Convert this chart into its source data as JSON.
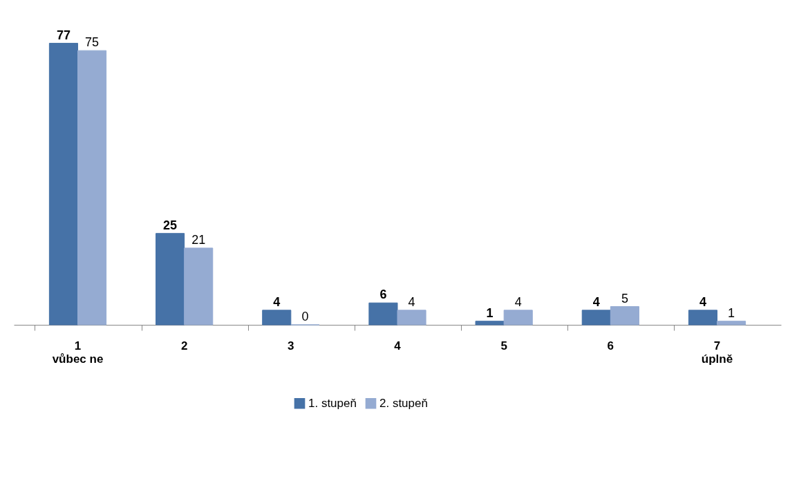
{
  "chart_data": {
    "type": "bar",
    "categories": [
      "1\nvůbec ne",
      "2",
      "3",
      "4",
      "5",
      "6",
      "7\núplně"
    ],
    "series": [
      {
        "name": "1. stupeň",
        "color": "#4672a7",
        "values": [
          77,
          25,
          4,
          6,
          1,
          4,
          4
        ]
      },
      {
        "name": "2. stupeň",
        "color": "#95abd2",
        "values": [
          75,
          21,
          0,
          4,
          4,
          5,
          1
        ]
      }
    ],
    "data_labels": true,
    "legend": "bottom",
    "grid": false
  }
}
